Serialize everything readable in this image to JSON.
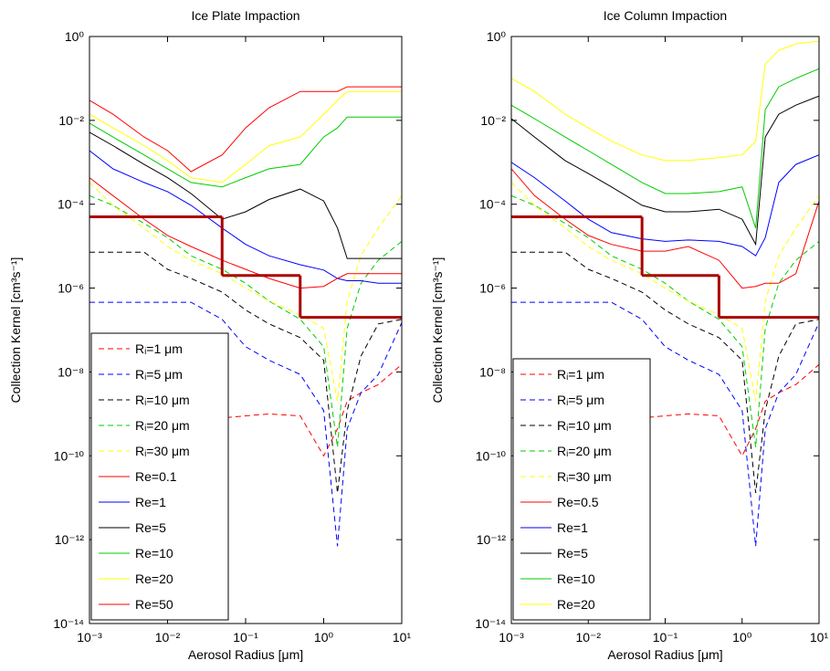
{
  "chart_data": [
    {
      "type": "line",
      "title": "Ice Plate Impaction",
      "xlabel": "Aerosol Radius [μm]",
      "ylabel": "Collection Kernel [cm³s⁻¹]",
      "xscale": "log",
      "yscale": "log",
      "x": [
        0.001,
        0.002,
        0.005,
        0.01,
        0.02,
        0.05,
        0.1,
        0.2,
        0.5,
        1,
        1.5,
        2,
        3,
        5,
        10
      ],
      "xlim": [
        0.001,
        10
      ],
      "ylim": [
        1e-14,
        1
      ],
      "xticks": [
        {
          "value": 0.001,
          "label": "10⁻³"
        },
        {
          "value": 0.01,
          "label": "10⁻²"
        },
        {
          "value": 0.1,
          "label": "10⁻¹"
        },
        {
          "value": 1,
          "label": "10⁰"
        },
        {
          "value": 10,
          "label": "10¹"
        }
      ],
      "yticks": [
        {
          "value": 1e-14,
          "label": "10⁻¹⁴"
        },
        {
          "value": 1e-12,
          "label": "10⁻¹²"
        },
        {
          "value": 1e-10,
          "label": "10⁻¹⁰"
        },
        {
          "value": 1e-08,
          "label": "10⁻⁸"
        },
        {
          "value": 1e-06,
          "label": "10⁻⁶"
        },
        {
          "value": 0.0001,
          "label": "10⁻⁴"
        },
        {
          "value": 0.01,
          "label": "10⁻²"
        },
        {
          "value": 1,
          "label": "10⁰"
        }
      ],
      "legend": "lower left",
      "series": [
        {
          "name": "Rᵢ=1 μm",
          "color": "#ff0000",
          "dashed": true,
          "values": [
            8e-10,
            8e-10,
            8e-10,
            8e-10,
            8e-10,
            8e-10,
            9e-10,
            1e-09,
            9e-10,
            1e-10,
            4.4e-10,
            2e-09,
            3.2e-09,
            5e-09,
            1.5e-08
          ]
        },
        {
          "name": "Rᵢ=5 μm",
          "color": "#0000ff",
          "dashed": true,
          "values": [
            4.6e-07,
            4.6e-07,
            4.6e-07,
            4.6e-07,
            4.6e-07,
            1.8e-07,
            4e-08,
            1.9e-08,
            8.7e-09,
            1.2e-09,
            7e-13,
            4.4e-10,
            3.2e-09,
            8.7e-09,
            1.5e-07
          ]
        },
        {
          "name": "Rᵢ=10 μm",
          "color": "#000000",
          "dashed": true,
          "values": [
            7.2e-06,
            7.2e-06,
            7.2e-06,
            2.8e-06,
            1.7e-06,
            8e-07,
            3e-07,
            1.4e-07,
            6.6e-08,
            1.9e-08,
            1.3e-11,
            1.2e-09,
            2.4e-08,
            1.4e-07,
            1.8e-07
          ]
        },
        {
          "name": "Rᵢ=20 μm",
          "color": "#00cc00",
          "dashed": true,
          "values": [
            0.00016,
            9.4e-05,
            3.5e-05,
            1.6e-05,
            5.9e-06,
            2.8e-06,
            1.3e-06,
            4.9e-07,
            1.8e-07,
            4e-08,
            1.6e-10,
            1.1e-07,
            1.3e-06,
            4.6e-06,
            1.3e-05
          ]
        },
        {
          "name": "Rᵢ=30 μm",
          "color": "#ffff00",
          "dashed": true,
          "values": [
            0.00033,
            9.4e-05,
            2.7e-05,
            9.8e-06,
            4.6e-06,
            2.2e-06,
            1e-06,
            4.9e-07,
            2.3e-07,
            1.1e-07,
            2e-09,
            4.9e-07,
            5.9e-06,
            2.7e-05,
            0.00016
          ]
        },
        {
          "name": "Re=0.1",
          "color": "#ff0000",
          "dashed": false,
          "values": [
            0.03,
            0.014,
            0.004,
            0.0019,
            0.0006,
            0.0015,
            0.0066,
            0.02,
            0.049,
            0.049,
            0.049,
            0.063,
            0.063,
            0.063,
            0.063
          ]
        },
        {
          "name": "Re=1",
          "color": "#0000ff",
          "dashed": false,
          "values": [
            0.0019,
            0.0007,
            0.00033,
            0.0002,
            9.4e-05,
            2.7e-05,
            1.1e-05,
            5.9e-06,
            3.6e-06,
            2.7e-06,
            1.7e-06,
            1.5e-06,
            1.5e-06,
            1.3e-06,
            1.3e-06
          ]
        },
        {
          "name": "Re=5",
          "color": "#000000",
          "dashed": false,
          "values": [
            0.0052,
            0.0025,
            0.00089,
            0.00043,
            0.00018,
            4.4e-05,
            6.6e-05,
            0.00013,
            0.00023,
            0.00012,
            2.7e-05,
            5.1e-06,
            5.1e-06,
            5.1e-06,
            5.1e-06
          ]
        },
        {
          "name": "Re=10",
          "color": "#00cc00",
          "dashed": false,
          "values": [
            0.0086,
            0.004,
            0.0015,
            0.0007,
            0.00033,
            0.00026,
            0.00043,
            0.0007,
            0.00089,
            0.004,
            0.0066,
            0.012,
            0.012,
            0.012,
            0.012
          ]
        },
        {
          "name": "Re=20",
          "color": "#ffff00",
          "dashed": false,
          "values": [
            0.014,
            0.0066,
            0.0025,
            0.0011,
            0.00043,
            0.00033,
            0.00089,
            0.0025,
            0.004,
            0.014,
            0.03,
            0.049,
            0.049,
            0.049,
            0.049
          ]
        },
        {
          "name": "Re=50",
          "color": "#ff0000",
          "dashed": false,
          "values": [
            0.00043,
            0.00016,
            4.4e-05,
            1.8e-05,
            9.8e-06,
            4.6e-06,
            2.8e-06,
            1.7e-06,
            1e-06,
            1.1e-06,
            1.7e-06,
            2.2e-06,
            2.2e-06,
            2.2e-06,
            2.2e-06
          ]
        }
      ],
      "step": {
        "color": "#aa0000",
        "bins": [
          0.001,
          0.05,
          0.5,
          10
        ],
        "values": [
          5e-05,
          2e-06,
          2e-07
        ]
      }
    },
    {
      "type": "line",
      "title": "Ice Column Impaction",
      "xlabel": "Aerosol Radius [μm]",
      "ylabel": "Collection Kernel [cm³s⁻¹]",
      "xscale": "log",
      "yscale": "log",
      "x": [
        0.001,
        0.002,
        0.005,
        0.01,
        0.02,
        0.05,
        0.1,
        0.2,
        0.5,
        1,
        1.5,
        2,
        3,
        5,
        10
      ],
      "xlim": [
        0.001,
        10
      ],
      "ylim": [
        1e-14,
        1
      ],
      "xticks": [
        {
          "value": 0.001,
          "label": "10⁻³"
        },
        {
          "value": 0.01,
          "label": "10⁻²"
        },
        {
          "value": 0.1,
          "label": "10⁻¹"
        },
        {
          "value": 1,
          "label": "10⁰"
        },
        {
          "value": 10,
          "label": "10¹"
        }
      ],
      "yticks": [
        {
          "value": 1e-14,
          "label": "10⁻¹⁴"
        },
        {
          "value": 1e-12,
          "label": "10⁻¹²"
        },
        {
          "value": 1e-10,
          "label": "10⁻¹⁰"
        },
        {
          "value": 1e-08,
          "label": "10⁻⁸"
        },
        {
          "value": 1e-06,
          "label": "10⁻⁶"
        },
        {
          "value": 0.0001,
          "label": "10⁻⁴"
        },
        {
          "value": 0.01,
          "label": "10⁻²"
        },
        {
          "value": 1,
          "label": "10⁰"
        }
      ],
      "legend": "lower left",
      "series": [
        {
          "name": "Rᵢ=1 μm",
          "color": "#ff0000",
          "dashed": true,
          "values": [
            8e-10,
            8e-10,
            8e-10,
            8e-10,
            8e-10,
            8e-10,
            9e-10,
            1e-09,
            9e-10,
            1e-10,
            4.4e-10,
            2e-09,
            3.2e-09,
            5e-09,
            1.5e-08
          ]
        },
        {
          "name": "Rᵢ=5 μm",
          "color": "#0000ff",
          "dashed": true,
          "values": [
            4.6e-07,
            4.6e-07,
            4.6e-07,
            4.6e-07,
            4.6e-07,
            1.8e-07,
            4e-08,
            1.9e-08,
            8.7e-09,
            1.2e-09,
            7e-13,
            4.4e-10,
            3.2e-09,
            8.7e-09,
            1.5e-07
          ]
        },
        {
          "name": "Rᵢ=10 μm",
          "color": "#000000",
          "dashed": true,
          "values": [
            7.2e-06,
            7.2e-06,
            7.2e-06,
            2.8e-06,
            1.7e-06,
            8e-07,
            3e-07,
            1.4e-07,
            6.6e-08,
            1.9e-08,
            1.3e-11,
            1.2e-09,
            2.4e-08,
            1.4e-07,
            1.8e-07
          ]
        },
        {
          "name": "Rᵢ=20 μm",
          "color": "#00cc00",
          "dashed": true,
          "values": [
            0.00016,
            9.4e-05,
            3.5e-05,
            1.6e-05,
            5.9e-06,
            2.8e-06,
            1.3e-06,
            4.9e-07,
            1.8e-07,
            4e-08,
            1.6e-10,
            1.1e-07,
            1.3e-06,
            4.6e-06,
            1.3e-05
          ]
        },
        {
          "name": "Rᵢ=30 μm",
          "color": "#ffff00",
          "dashed": true,
          "values": [
            0.00033,
            9.4e-05,
            2.7e-05,
            9.8e-06,
            4.6e-06,
            2.2e-06,
            1e-06,
            4.9e-07,
            2.3e-07,
            1.1e-07,
            2e-09,
            4.9e-07,
            5.9e-06,
            2.7e-05,
            0.00016
          ]
        },
        {
          "name": "Re=0.5",
          "color": "#ff0000",
          "dashed": false,
          "values": [
            0.0007,
            0.00016,
            4.4e-05,
            1.8e-05,
            1.1e-05,
            7.6e-06,
            7.6e-06,
            9.8e-06,
            4.6e-06,
            1e-06,
            1.1e-06,
            1.3e-06,
            1.3e-06,
            2.2e-06,
            0.00012
          ]
        },
        {
          "name": "Re=1",
          "color": "#0000ff",
          "dashed": false,
          "values": [
            0.001,
            0.00043,
            0.00012,
            4.4e-05,
            2.1e-05,
            1.5e-05,
            1.3e-05,
            1.4e-05,
            1.3e-05,
            9.8e-06,
            5.9e-06,
            1.6e-05,
            0.00033,
            0.00089,
            0.0015
          ]
        },
        {
          "name": "Re=5",
          "color": "#000000",
          "dashed": false,
          "values": [
            0.011,
            0.004,
            0.0011,
            0.00054,
            0.00026,
            9.4e-05,
            6.6e-05,
            6.6e-05,
            7.6e-05,
            4.4e-05,
            1.1e-05,
            0.004,
            0.014,
            0.023,
            0.038
          ]
        },
        {
          "name": "Re=10",
          "color": "#00cc00",
          "dashed": false,
          "values": [
            0.023,
            0.011,
            0.004,
            0.0019,
            0.00089,
            0.00033,
            0.00018,
            0.00018,
            0.0002,
            0.00026,
            2.7e-05,
            0.018,
            0.063,
            0.1,
            0.17
          ]
        },
        {
          "name": "Re=20",
          "color": "#ffff00",
          "dashed": false,
          "values": [
            0.1,
            0.049,
            0.014,
            0.0066,
            0.0032,
            0.0015,
            0.0011,
            0.0011,
            0.0013,
            0.0015,
            0.0032,
            0.22,
            0.47,
            0.67,
            0.78
          ]
        }
      ],
      "step": {
        "color": "#aa0000",
        "bins": [
          0.001,
          0.05,
          0.5,
          10
        ],
        "values": [
          5e-05,
          2e-06,
          2e-07
        ]
      }
    }
  ]
}
